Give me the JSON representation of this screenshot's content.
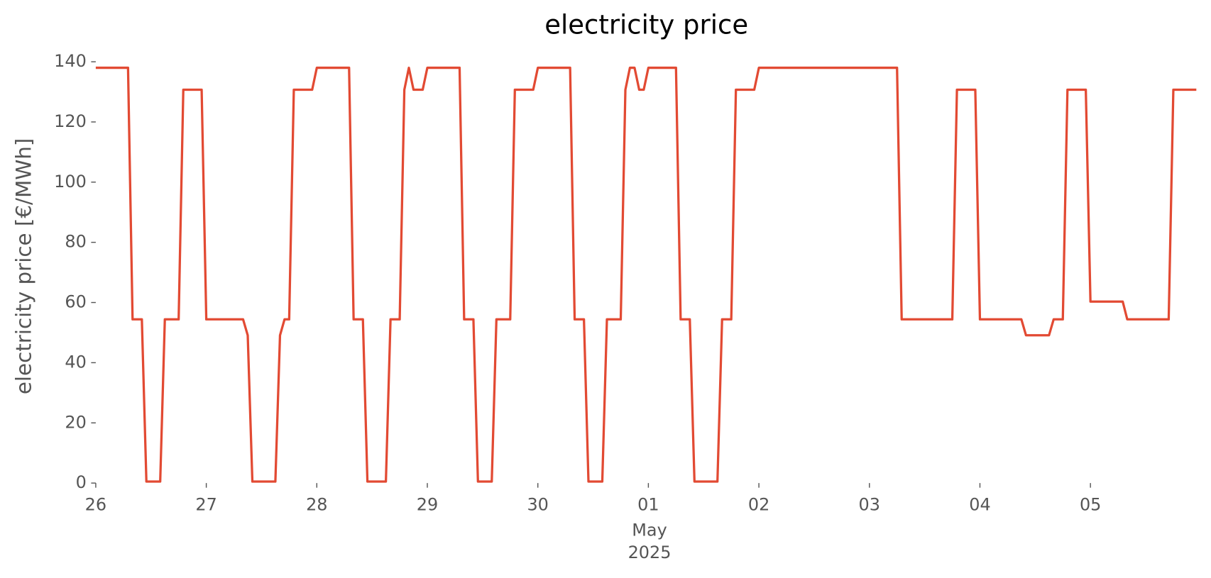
{
  "chart_data": {
    "type": "line",
    "title": "electricity price",
    "ylabel": "electricity price [€/MWh]",
    "xlabel_lines": [
      "May",
      "2025"
    ],
    "x": [
      0,
      0.292,
      0.333,
      0.417,
      0.458,
      0.583,
      0.625,
      0.75,
      0.792,
      0.958,
      1.0,
      1.333,
      1.375,
      1.417,
      1.625,
      1.667,
      1.708,
      1.75,
      1.792,
      1.958,
      2.0,
      2.292,
      2.333,
      2.417,
      2.458,
      2.625,
      2.667,
      2.75,
      2.792,
      2.833,
      2.875,
      2.958,
      3.0,
      3.292,
      3.333,
      3.417,
      3.458,
      3.583,
      3.625,
      3.75,
      3.792,
      3.958,
      4.0,
      4.292,
      4.333,
      4.417,
      4.458,
      4.583,
      4.625,
      4.75,
      4.792,
      4.833,
      4.875,
      4.917,
      4.958,
      5.0,
      5.25,
      5.292,
      5.375,
      5.417,
      5.625,
      5.667,
      5.75,
      5.792,
      5.958,
      6.0,
      7.25,
      7.292,
      7.75,
      7.792,
      7.958,
      8.0,
      8.375,
      8.417,
      8.625,
      8.667,
      8.75,
      8.792,
      8.958,
      9.0,
      9.292,
      9.333,
      9.708,
      9.75,
      9.958
    ],
    "series": [
      {
        "name": "electricity price",
        "color": "#e24a33",
        "values": [
          138,
          138,
          54.4,
          54.4,
          0.5,
          0.5,
          54.4,
          54.4,
          130.7,
          130.7,
          54.4,
          54.4,
          49.1,
          0.5,
          0.5,
          49.1,
          54.4,
          54.4,
          130.7,
          130.7,
          138,
          138,
          54.4,
          54.4,
          0.5,
          0.5,
          54.4,
          54.4,
          130.7,
          138,
          130.7,
          130.7,
          138,
          138,
          54.4,
          54.4,
          0.5,
          0.5,
          54.4,
          54.4,
          130.7,
          130.7,
          138,
          138,
          54.4,
          54.4,
          0.5,
          0.5,
          54.4,
          54.4,
          130.7,
          138,
          138,
          130.7,
          130.7,
          138,
          138,
          54.4,
          54.4,
          0.5,
          0.5,
          54.4,
          54.4,
          130.7,
          130.7,
          138,
          138,
          54.4,
          54.4,
          130.7,
          130.7,
          54.4,
          54.4,
          49.1,
          49.1,
          54.4,
          54.4,
          130.7,
          130.7,
          60.3,
          60.3,
          54.4,
          54.4,
          130.7,
          130.7
        ]
      }
    ],
    "xlim": [
      0,
      9.958
    ],
    "xticks": [
      {
        "value": 0,
        "label": "26"
      },
      {
        "value": 1,
        "label": "27"
      },
      {
        "value": 2,
        "label": "28"
      },
      {
        "value": 3,
        "label": "29"
      },
      {
        "value": 4,
        "label": "30"
      },
      {
        "value": 5,
        "label": "01"
      },
      {
        "value": 6,
        "label": "02"
      },
      {
        "value": 7,
        "label": "03"
      },
      {
        "value": 8,
        "label": "04"
      },
      {
        "value": 9,
        "label": "05"
      }
    ],
    "ylim": [
      0,
      140
    ],
    "yticks": [
      0,
      20,
      40,
      60,
      80,
      100,
      120,
      140
    ],
    "grid": false
  }
}
